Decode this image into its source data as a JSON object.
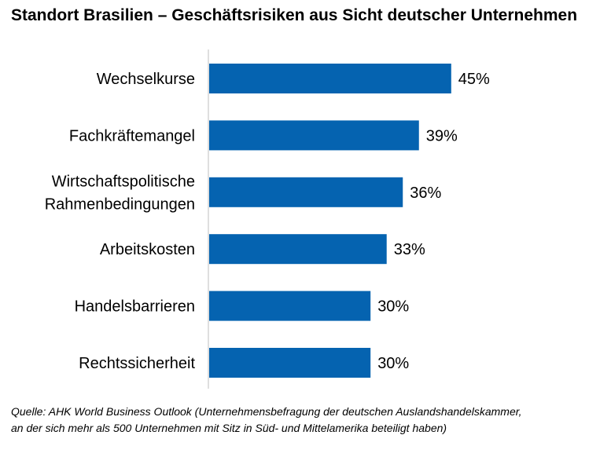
{
  "chart_data": {
    "type": "bar",
    "orientation": "horizontal",
    "title": "Standort Brasilien – Geschäftsrisiken aus Sicht deutscher Unternehmen",
    "categories": [
      [
        "Wechselkurse"
      ],
      [
        "Fachkräftemangel"
      ],
      [
        "Wirtschaftspolitische",
        "Rahmenbedingungen"
      ],
      [
        "Arbeitskosten"
      ],
      [
        "Handelsbarrieren"
      ],
      [
        "Rechtssicherheit"
      ]
    ],
    "values": [
      45,
      39,
      36,
      33,
      30,
      30
    ],
    "data_labels": [
      "45%",
      "39%",
      "36%",
      "33%",
      "30%",
      "30%"
    ],
    "xlim": [
      0,
      100
    ],
    "unit": "%",
    "bar_color": "#0563b0",
    "axis_color": "#bfbfbf",
    "grid": false,
    "legend": "none"
  },
  "source_lines": [
    "Quelle: AHK World Business Outlook (Unternehmensbefragung der deutschen Auslandshandelskammer,",
    "an der sich mehr als 500 Unternehmen mit Sitz in Süd- und Mittelamerika beteiligt haben)"
  ]
}
